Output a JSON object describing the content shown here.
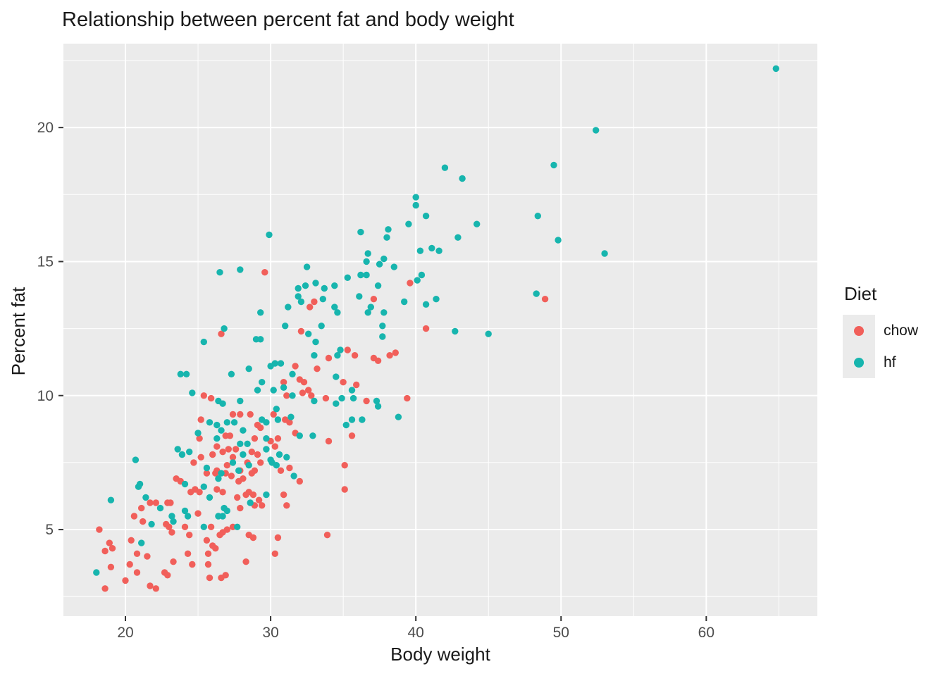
{
  "title": "Relationship between percent fat and body weight",
  "x_axis": {
    "label": "Body weight",
    "tick_labels": [
      "20",
      "30",
      "40",
      "50",
      "60"
    ],
    "major_ticks": [
      20,
      30,
      40,
      50,
      60
    ],
    "minor_ticks": [
      15,
      25,
      35,
      45,
      55,
      65
    ],
    "range": [
      15.73,
      67.65
    ]
  },
  "y_axis": {
    "label": "Percent fat",
    "tick_labels": [
      "5",
      "10",
      "15",
      "20"
    ],
    "major_ticks": [
      5,
      10,
      15,
      20
    ],
    "minor_ticks": [
      2.5,
      7.5,
      12.5,
      17.5,
      22.5
    ],
    "range": [
      1.77,
      23.13
    ]
  },
  "legend": {
    "title": "Diet",
    "entries": [
      {
        "label": "chow",
        "color": "#F15F5A"
      },
      {
        "label": "hf",
        "color": "#17B5AE"
      }
    ]
  },
  "style": {
    "panel_bg": "#EBEBEB",
    "grid_color": "#FFFFFF",
    "tick_mark_color": "#333333",
    "tick_label_color": "#4D4D4D",
    "point_radius": 4.7
  },
  "chart_data": {
    "type": "scatter",
    "title": "Relationship between percent fat and body weight",
    "xlabel": "Body weight",
    "ylabel": "Percent fat",
    "xlim": [
      15.73,
      67.65
    ],
    "ylim": [
      1.77,
      23.13
    ],
    "legend_position": "right",
    "grid": true,
    "series": [
      {
        "name": "chow",
        "color": "#F15F5A",
        "points": [
          [
            29.6,
            14.6
          ],
          [
            39.6,
            14.2
          ],
          [
            48.9,
            13.6
          ],
          [
            37.1,
            13.6
          ],
          [
            33.0,
            13.5
          ],
          [
            32.7,
            13.3
          ],
          [
            40.7,
            12.5
          ],
          [
            32.1,
            12.4
          ],
          [
            26.6,
            12.3
          ],
          [
            35.3,
            11.7
          ],
          [
            34.0,
            11.4
          ],
          [
            31.7,
            11.1
          ],
          [
            35.8,
            11.5
          ],
          [
            37.1,
            11.4
          ],
          [
            37.4,
            11.3
          ],
          [
            38.2,
            11.5
          ],
          [
            38.6,
            11.6
          ],
          [
            33.2,
            11.0
          ],
          [
            32.0,
            10.6
          ],
          [
            32.3,
            10.5
          ],
          [
            35.0,
            10.5
          ],
          [
            30.9,
            10.5
          ],
          [
            35.9,
            10.4
          ],
          [
            32.6,
            10.2
          ],
          [
            32.2,
            10.1
          ],
          [
            31.1,
            10.0
          ],
          [
            32.8,
            10.0
          ],
          [
            25.4,
            10.0
          ],
          [
            25.9,
            9.9
          ],
          [
            36.6,
            9.8
          ],
          [
            39.4,
            9.9
          ],
          [
            33.8,
            9.9
          ],
          [
            25.2,
            9.1
          ],
          [
            27.4,
            9.3
          ],
          [
            27.9,
            9.3
          ],
          [
            28.6,
            9.3
          ],
          [
            30.2,
            9.3
          ],
          [
            31.0,
            9.1
          ],
          [
            31.3,
            9.0
          ],
          [
            29.1,
            8.9
          ],
          [
            29.3,
            8.8
          ],
          [
            25.1,
            8.4
          ],
          [
            26.9,
            8.5
          ],
          [
            27.2,
            8.5
          ],
          [
            27.1,
            8.0
          ],
          [
            27.6,
            8.0
          ],
          [
            28.9,
            8.4
          ],
          [
            30.0,
            8.3
          ],
          [
            30.5,
            8.4
          ],
          [
            31.7,
            8.6
          ],
          [
            34.0,
            8.3
          ],
          [
            35.6,
            8.5
          ],
          [
            30.3,
            8.1
          ],
          [
            26.0,
            7.8
          ],
          [
            26.3,
            8.1
          ],
          [
            26.7,
            7.9
          ],
          [
            27.0,
            7.4
          ],
          [
            27.4,
            7.7
          ],
          [
            28.7,
            7.9
          ],
          [
            29.1,
            7.8
          ],
          [
            24.7,
            7.5
          ],
          [
            25.2,
            7.7
          ],
          [
            25.6,
            7.1
          ],
          [
            26.3,
            7.2
          ],
          [
            27.9,
            7.2
          ],
          [
            28.4,
            7.5
          ],
          [
            28.9,
            7.2
          ],
          [
            29.3,
            7.5
          ],
          [
            30.7,
            7.2
          ],
          [
            31.3,
            7.3
          ],
          [
            35.1,
            7.4
          ],
          [
            26.2,
            7.1
          ],
          [
            26.9,
            7.1
          ],
          [
            27.3,
            7.0
          ],
          [
            27.8,
            6.8
          ],
          [
            28.1,
            6.9
          ],
          [
            28.7,
            7.1
          ],
          [
            32.0,
            6.8
          ],
          [
            35.1,
            6.5
          ],
          [
            23.5,
            6.9
          ],
          [
            23.8,
            6.8
          ],
          [
            24.5,
            6.4
          ],
          [
            24.8,
            6.5
          ],
          [
            25.1,
            6.4
          ],
          [
            26.3,
            6.5
          ],
          [
            26.7,
            6.4
          ],
          [
            27.7,
            6.2
          ],
          [
            27.9,
            5.8
          ],
          [
            28.3,
            6.3
          ],
          [
            28.5,
            6.4
          ],
          [
            28.8,
            6.3
          ],
          [
            29.2,
            6.1
          ],
          [
            29.4,
            5.9
          ],
          [
            28.9,
            5.9
          ],
          [
            30.9,
            6.3
          ],
          [
            31.1,
            5.9
          ],
          [
            21.1,
            5.8
          ],
          [
            21.7,
            6.0
          ],
          [
            22.1,
            6.0
          ],
          [
            22.9,
            6.0
          ],
          [
            23.1,
            6.0
          ],
          [
            20.6,
            5.5
          ],
          [
            21.2,
            5.3
          ],
          [
            22.8,
            5.2
          ],
          [
            23.0,
            5.1
          ],
          [
            23.2,
            4.9
          ],
          [
            24.1,
            5.1
          ],
          [
            24.4,
            4.8
          ],
          [
            25.0,
            5.6
          ],
          [
            25.6,
            4.6
          ],
          [
            18.2,
            5.0
          ],
          [
            25.9,
            5.1
          ],
          [
            26.5,
            4.8
          ],
          [
            26.7,
            4.9
          ],
          [
            27.0,
            5.0
          ],
          [
            27.4,
            5.1
          ],
          [
            28.5,
            4.8
          ],
          [
            28.8,
            4.7
          ],
          [
            30.5,
            4.7
          ],
          [
            33.9,
            4.8
          ],
          [
            18.9,
            4.5
          ],
          [
            19.1,
            4.3
          ],
          [
            18.6,
            4.2
          ],
          [
            20.4,
            4.6
          ],
          [
            26.0,
            4.4
          ],
          [
            26.2,
            4.3
          ],
          [
            30.3,
            4.1
          ],
          [
            25.7,
            4.1
          ],
          [
            19.0,
            3.6
          ],
          [
            20.3,
            3.7
          ],
          [
            20.8,
            4.1
          ],
          [
            21.5,
            4.0
          ],
          [
            24.3,
            4.1
          ],
          [
            24.6,
            3.7
          ],
          [
            23.3,
            3.8
          ],
          [
            28.3,
            3.8
          ],
          [
            25.7,
            3.7
          ],
          [
            18.6,
            2.8
          ],
          [
            20.0,
            3.1
          ],
          [
            20.8,
            3.4
          ],
          [
            21.7,
            2.9
          ],
          [
            22.1,
            2.8
          ],
          [
            22.7,
            3.4
          ],
          [
            22.9,
            3.3
          ],
          [
            25.8,
            3.2
          ],
          [
            26.6,
            3.2
          ],
          [
            26.9,
            3.3
          ]
        ]
      },
      {
        "name": "hf",
        "color": "#17B5AE",
        "points": [
          [
            64.8,
            22.2
          ],
          [
            52.4,
            19.9
          ],
          [
            49.5,
            18.6
          ],
          [
            42.0,
            18.5
          ],
          [
            43.2,
            18.1
          ],
          [
            40.0,
            17.4
          ],
          [
            40.0,
            17.1
          ],
          [
            40.7,
            16.7
          ],
          [
            48.4,
            16.7
          ],
          [
            39.5,
            16.4
          ],
          [
            44.2,
            16.4
          ],
          [
            38.1,
            16.2
          ],
          [
            36.2,
            16.1
          ],
          [
            29.9,
            16.0
          ],
          [
            38.0,
            15.9
          ],
          [
            42.9,
            15.9
          ],
          [
            49.8,
            15.8
          ],
          [
            41.1,
            15.5
          ],
          [
            41.6,
            15.4
          ],
          [
            40.3,
            15.4
          ],
          [
            53.0,
            15.3
          ],
          [
            36.7,
            15.3
          ],
          [
            37.8,
            15.1
          ],
          [
            36.6,
            15.0
          ],
          [
            37.5,
            14.9
          ],
          [
            38.5,
            14.8
          ],
          [
            32.5,
            14.8
          ],
          [
            27.9,
            14.7
          ],
          [
            26.5,
            14.6
          ],
          [
            36.2,
            14.5
          ],
          [
            36.6,
            14.5
          ],
          [
            40.4,
            14.5
          ],
          [
            35.3,
            14.4
          ],
          [
            40.1,
            14.3
          ],
          [
            33.1,
            14.2
          ],
          [
            34.4,
            14.1
          ],
          [
            33.7,
            14.0
          ],
          [
            31.9,
            14.0
          ],
          [
            32.4,
            14.1
          ],
          [
            37.4,
            14.1
          ],
          [
            31.9,
            13.7
          ],
          [
            36.1,
            13.7
          ],
          [
            32.1,
            13.5
          ],
          [
            33.6,
            13.6
          ],
          [
            39.2,
            13.5
          ],
          [
            40.7,
            13.4
          ],
          [
            41.4,
            13.6
          ],
          [
            48.3,
            13.8
          ],
          [
            31.2,
            13.3
          ],
          [
            34.4,
            13.3
          ],
          [
            36.9,
            13.3
          ],
          [
            34.6,
            13.1
          ],
          [
            29.3,
            13.1
          ],
          [
            36.7,
            13.1
          ],
          [
            37.8,
            13.1
          ],
          [
            31.0,
            12.6
          ],
          [
            26.8,
            12.5
          ],
          [
            33.5,
            12.6
          ],
          [
            37.7,
            12.6
          ],
          [
            42.7,
            12.4
          ],
          [
            45.0,
            12.3
          ],
          [
            25.4,
            12.0
          ],
          [
            29.0,
            12.1
          ],
          [
            29.3,
            12.1
          ],
          [
            32.6,
            12.3
          ],
          [
            37.7,
            12.2
          ],
          [
            33.1,
            12.0
          ],
          [
            34.8,
            11.7
          ],
          [
            33.0,
            11.5
          ],
          [
            34.6,
            11.5
          ],
          [
            28.5,
            11.0
          ],
          [
            27.3,
            10.8
          ],
          [
            30.0,
            11.1
          ],
          [
            30.3,
            11.2
          ],
          [
            30.7,
            11.2
          ],
          [
            23.8,
            10.8
          ],
          [
            24.2,
            10.8
          ],
          [
            31.5,
            10.8
          ],
          [
            34.5,
            10.7
          ],
          [
            29.4,
            10.5
          ],
          [
            29.1,
            10.2
          ],
          [
            30.2,
            10.2
          ],
          [
            30.9,
            10.3
          ],
          [
            24.6,
            10.1
          ],
          [
            35.6,
            10.2
          ],
          [
            26.4,
            9.8
          ],
          [
            26.7,
            9.7
          ],
          [
            27.9,
            9.8
          ],
          [
            33.0,
            9.8
          ],
          [
            34.5,
            9.7
          ],
          [
            34.9,
            9.9
          ],
          [
            31.5,
            10.0
          ],
          [
            35.7,
            9.9
          ],
          [
            37.3,
            9.8
          ],
          [
            37.4,
            9.6
          ],
          [
            25.8,
            9.0
          ],
          [
            26.3,
            8.9
          ],
          [
            26.6,
            8.7
          ],
          [
            27.5,
            9.0
          ],
          [
            27.0,
            9.0
          ],
          [
            28.1,
            8.7
          ],
          [
            29.4,
            9.1
          ],
          [
            29.7,
            9.0
          ],
          [
            30.4,
            9.5
          ],
          [
            30.5,
            9.1
          ],
          [
            31.4,
            9.2
          ],
          [
            38.8,
            9.2
          ],
          [
            35.2,
            8.9
          ],
          [
            35.6,
            9.1
          ],
          [
            36.3,
            9.1
          ],
          [
            25.0,
            8.6
          ],
          [
            26.3,
            8.4
          ],
          [
            27.9,
            8.2
          ],
          [
            28.4,
            8.2
          ],
          [
            29.7,
            8.4
          ],
          [
            32.0,
            8.5
          ],
          [
            32.9,
            8.5
          ],
          [
            23.6,
            8.0
          ],
          [
            24.4,
            7.9
          ],
          [
            23.9,
            7.8
          ],
          [
            30.6,
            7.8
          ],
          [
            29.7,
            8.0
          ],
          [
            20.7,
            7.6
          ],
          [
            25.6,
            7.3
          ],
          [
            27.4,
            7.5
          ],
          [
            27.8,
            7.2
          ],
          [
            28.5,
            7.4
          ],
          [
            30.0,
            7.6
          ],
          [
            30.1,
            7.5
          ],
          [
            30.4,
            7.4
          ],
          [
            31.1,
            7.7
          ],
          [
            28.1,
            7.8
          ],
          [
            26.4,
            6.9
          ],
          [
            26.6,
            7.1
          ],
          [
            31.6,
            7.0
          ],
          [
            25.8,
            6.2
          ],
          [
            26.8,
            5.8
          ],
          [
            27.0,
            5.7
          ],
          [
            26.4,
            5.5
          ],
          [
            26.7,
            5.5
          ],
          [
            27.7,
            5.1
          ],
          [
            29.7,
            6.3
          ],
          [
            28.6,
            6.0
          ],
          [
            19.0,
            6.1
          ],
          [
            20.9,
            6.6
          ],
          [
            21.0,
            6.7
          ],
          [
            21.4,
            6.2
          ],
          [
            24.1,
            6.7
          ],
          [
            22.4,
            5.8
          ],
          [
            21.8,
            5.2
          ],
          [
            23.2,
            5.5
          ],
          [
            23.3,
            5.3
          ],
          [
            24.1,
            5.7
          ],
          [
            24.3,
            5.5
          ],
          [
            25.4,
            5.1
          ],
          [
            25.4,
            6.6
          ],
          [
            18.0,
            3.4
          ],
          [
            21.1,
            4.5
          ]
        ]
      }
    ]
  }
}
